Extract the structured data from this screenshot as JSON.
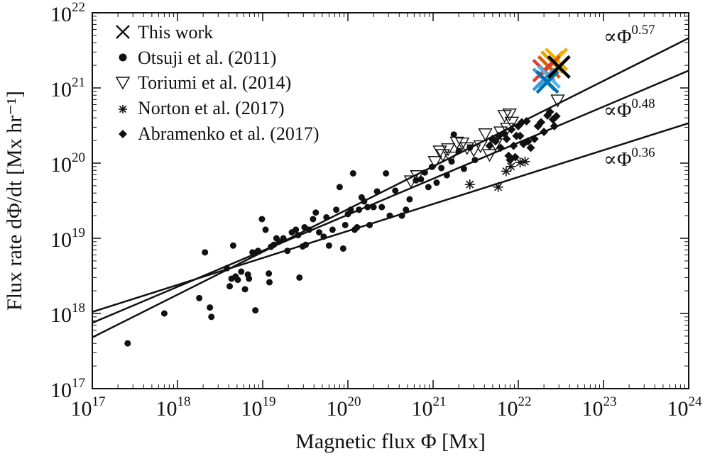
{
  "chart_data": {
    "type": "scatter",
    "x_scale": "log",
    "y_scale": "log",
    "xlim": [
      1e+17,
      1e+24
    ],
    "ylim": [
      1e+17,
      1e+22
    ],
    "xlabel": "Magnetic flux Φ [Mx]",
    "ylabel": "Flux rate dΦ/dt [Mx hr⁻¹]",
    "grid": false,
    "legend_position": "top-left",
    "x_ticks": [
      {
        "base": "10",
        "exp": "17",
        "value": 1e+17
      },
      {
        "base": "10",
        "exp": "18",
        "value": 1e+18
      },
      {
        "base": "10",
        "exp": "19",
        "value": 1e+19
      },
      {
        "base": "10",
        "exp": "20",
        "value": 1e+20
      },
      {
        "base": "10",
        "exp": "21",
        "value": 1e+21
      },
      {
        "base": "10",
        "exp": "22",
        "value": 1e+22
      },
      {
        "base": "10",
        "exp": "23",
        "value": 1e+23
      },
      {
        "base": "10",
        "exp": "24",
        "value": 1e+24
      }
    ],
    "y_ticks": [
      {
        "base": "10",
        "exp": "17",
        "value": 1e+17
      },
      {
        "base": "10",
        "exp": "18",
        "value": 1e+18
      },
      {
        "base": "10",
        "exp": "19",
        "value": 1e+19
      },
      {
        "base": "10",
        "exp": "20",
        "value": 1e+20
      },
      {
        "base": "10",
        "exp": "21",
        "value": 1e+21
      },
      {
        "base": "10",
        "exp": "22",
        "value": 1e+22
      }
    ],
    "series": [
      {
        "name": "This work",
        "marker": "x",
        "points": [
          {
            "x": 2.5e+22,
            "y": 2.2e+21,
            "color": "#e69f00"
          },
          {
            "x": 2.8e+22,
            "y": 2.4e+21,
            "color": "#f0b000"
          },
          {
            "x": 2.3e+22,
            "y": 1.9e+21,
            "color": "#d55e00"
          },
          {
            "x": 2e+22,
            "y": 1.7e+21,
            "color": "#e63b2e"
          },
          {
            "x": 2.3e+22,
            "y": 1.4e+21,
            "color": "#56b4e9"
          },
          {
            "x": 2e+22,
            "y": 1.3e+21,
            "color": "#3a9ad9"
          },
          {
            "x": 2.2e+22,
            "y": 1.2e+21,
            "color": "#0072b2"
          },
          {
            "x": 3e+22,
            "y": 1.9e+21,
            "color": "#000000"
          }
        ]
      },
      {
        "name": "Otsuji et al. (2011)",
        "marker": "circle",
        "points": [
          {
            "x": 2.6e+17,
            "y": 4e+17
          },
          {
            "x": 7e+17,
            "y": 1e+18
          },
          {
            "x": 1.8e+18,
            "y": 1.6e+18
          },
          {
            "x": 2.1e+18,
            "y": 6.5e+18
          },
          {
            "x": 2.4e+18,
            "y": 1.2e+18
          },
          {
            "x": 2.5e+18,
            "y": 9e+17
          },
          {
            "x": 3.8e+18,
            "y": 4e+18
          },
          {
            "x": 4.1e+18,
            "y": 2.3e+18
          },
          {
            "x": 4.3e+18,
            "y": 2.9e+18
          },
          {
            "x": 4.5e+18,
            "y": 8e+18
          },
          {
            "x": 4.8e+18,
            "y": 3.1e+18
          },
          {
            "x": 5.1e+18,
            "y": 2.8e+18
          },
          {
            "x": 5.6e+18,
            "y": 3.6e+18
          },
          {
            "x": 6.2e+18,
            "y": 2.1e+18
          },
          {
            "x": 6.7e+18,
            "y": 3.3e+18
          },
          {
            "x": 6.9e+18,
            "y": 2.9e+18
          },
          {
            "x": 7.6e+18,
            "y": 6.5e+18
          },
          {
            "x": 8.2e+18,
            "y": 1.1e+18
          },
          {
            "x": 8.8e+18,
            "y": 6.8e+18
          },
          {
            "x": 9.8e+18,
            "y": 1.8e+19
          },
          {
            "x": 1.08e+19,
            "y": 1.3e+19
          },
          {
            "x": 1.18e+19,
            "y": 3.4e+18
          },
          {
            "x": 1.2e+19,
            "y": 2.6e+18
          },
          {
            "x": 1.25e+19,
            "y": 7.7e+18
          },
          {
            "x": 1.35e+19,
            "y": 8.2e+18
          },
          {
            "x": 1.45e+19,
            "y": 1e+19
          },
          {
            "x": 1.55e+19,
            "y": 9e+18
          },
          {
            "x": 1.75e+19,
            "y": 1e+19
          },
          {
            "x": 1.95e+19,
            "y": 6.8e+18
          },
          {
            "x": 2.2e+19,
            "y": 1.2e+19
          },
          {
            "x": 2.45e+19,
            "y": 1.3e+19
          },
          {
            "x": 2.6e+19,
            "y": 1.1e+19
          },
          {
            "x": 2.7e+19,
            "y": 3e+18
          },
          {
            "x": 2.95e+19,
            "y": 7.8e+18
          },
          {
            "x": 3.1e+19,
            "y": 1.4e+19
          },
          {
            "x": 3.2e+19,
            "y": 8.2e+18
          },
          {
            "x": 3.5e+19,
            "y": 1.3e+19
          },
          {
            "x": 3.9e+19,
            "y": 1.8e+19
          },
          {
            "x": 4.2e+19,
            "y": 2.2e+19
          },
          {
            "x": 4.6e+19,
            "y": 1.2e+19
          },
          {
            "x": 5.2e+19,
            "y": 1.05e+19
          },
          {
            "x": 5.6e+19,
            "y": 1.9e+19
          },
          {
            "x": 6e+19,
            "y": 8e+18
          },
          {
            "x": 6.6e+19,
            "y": 1.3e+19
          },
          {
            "x": 7.3e+19,
            "y": 2.4e+19
          },
          {
            "x": 8e+19,
            "y": 4.8e+19
          },
          {
            "x": 8.8e+19,
            "y": 7.3e+18
          },
          {
            "x": 9.3e+19,
            "y": 1.5e+19
          },
          {
            "x": 1e+20,
            "y": 2.1e+19
          },
          {
            "x": 1.08e+20,
            "y": 2.4e+19
          },
          {
            "x": 1.15e+20,
            "y": 7.3e+19
          },
          {
            "x": 1.2e+20,
            "y": 1.3e+19
          },
          {
            "x": 1.28e+20,
            "y": 1.4e+19
          },
          {
            "x": 1.35e+20,
            "y": 2.4e+19
          },
          {
            "x": 1.45e+20,
            "y": 3.5e+19
          },
          {
            "x": 1.55e+20,
            "y": 3.1e+19
          },
          {
            "x": 1.7e+20,
            "y": 2.6e+19
          },
          {
            "x": 1.8e+20,
            "y": 1.5e+19
          },
          {
            "x": 2e+20,
            "y": 2.6e+19
          },
          {
            "x": 2.2e+20,
            "y": 4.2e+19
          },
          {
            "x": 2.5e+20,
            "y": 2.6e+19
          },
          {
            "x": 2.8e+20,
            "y": 7.3e+19
          },
          {
            "x": 3.1e+20,
            "y": 2e+19
          },
          {
            "x": 3.6e+20,
            "y": 4.3e+19
          },
          {
            "x": 4.3e+20,
            "y": 2e+19
          },
          {
            "x": 4.8e+20,
            "y": 2.4e+19
          },
          {
            "x": 5.3e+20,
            "y": 3.3e+19
          },
          {
            "x": 6.3e+20,
            "y": 5.9e+19
          },
          {
            "x": 7.2e+20,
            "y": 6.1e+19
          },
          {
            "x": 8e+20,
            "y": 7.5e+19
          },
          {
            "x": 8.8e+20,
            "y": 4.8e+19
          },
          {
            "x": 9.7e+20,
            "y": 8.9e+19
          },
          {
            "x": 1.1e+21,
            "y": 5.5e+19
          },
          {
            "x": 1.25e+21,
            "y": 8.6e+19
          },
          {
            "x": 1.45e+21,
            "y": 6.9e+19
          },
          {
            "x": 1.65e+21,
            "y": 1.05e+20
          },
          {
            "x": 1.75e+21,
            "y": 2.4e+20
          },
          {
            "x": 2e+21,
            "y": 1.45e+20
          },
          {
            "x": 2.3e+21,
            "y": 8.4e+19
          },
          {
            "x": 2.7e+21,
            "y": 1.6e+20
          },
          {
            "x": 3.1e+21,
            "y": 1.1e+20
          }
        ]
      },
      {
        "name": "Toriumi et al. (2014)",
        "marker": "triangle-down-open",
        "points": [
          {
            "x": 5.5e+20,
            "y": 5.8e+19
          },
          {
            "x": 6.5e+20,
            "y": 6.8e+19
          },
          {
            "x": 1.05e+21,
            "y": 1.05e+20
          },
          {
            "x": 1.2e+21,
            "y": 1.45e+20
          },
          {
            "x": 1.3e+21,
            "y": 1.3e+20
          },
          {
            "x": 1.5e+21,
            "y": 1.55e+20
          },
          {
            "x": 1.6e+21,
            "y": 1.2e+20
          },
          {
            "x": 1.9e+21,
            "y": 1.9e+20
          },
          {
            "x": 2.2e+21,
            "y": 1.85e+20
          },
          {
            "x": 2.5e+21,
            "y": 1.6e+20
          },
          {
            "x": 3e+21,
            "y": 1.5e+20
          },
          {
            "x": 3.6e+21,
            "y": 1.7e+20
          },
          {
            "x": 4.1e+21,
            "y": 2.45e+20
          },
          {
            "x": 4.6e+21,
            "y": 1.3e+20
          },
          {
            "x": 5.4e+21,
            "y": 1.8e+20
          },
          {
            "x": 6.2e+21,
            "y": 2.6e+20
          },
          {
            "x": 6.9e+21,
            "y": 4.3e+20
          },
          {
            "x": 7.4e+21,
            "y": 2.9e+20
          },
          {
            "x": 7.9e+21,
            "y": 4.5e+20
          },
          {
            "x": 8.4e+21,
            "y": 3.5e+20
          },
          {
            "x": 2.9e+22,
            "y": 6.9e+20
          }
        ]
      },
      {
        "name": "Norton et al. (2017)",
        "marker": "asterisk",
        "points": [
          {
            "x": 2.7e+21,
            "y": 5.2e+19
          },
          {
            "x": 5.8e+21,
            "y": 4.8e+19
          },
          {
            "x": 7.2e+21,
            "y": 7.8e+19
          },
          {
            "x": 8.2e+21,
            "y": 9e+19
          },
          {
            "x": 1.05e+22,
            "y": 1.02e+20
          },
          {
            "x": 1.2e+22,
            "y": 1.05e+20
          }
        ]
      },
      {
        "name": "Abramenko et al. (2017)",
        "marker": "diamond",
        "points": [
          {
            "x": 4.6e+21,
            "y": 1.7e+20
          },
          {
            "x": 5e+21,
            "y": 2.1e+20
          },
          {
            "x": 5.4e+21,
            "y": 1.95e+20
          },
          {
            "x": 5.9e+21,
            "y": 2.3e+20
          },
          {
            "x": 6.2e+21,
            "y": 1.6e+20
          },
          {
            "x": 6.8e+21,
            "y": 2.5e+20
          },
          {
            "x": 7.3e+21,
            "y": 2.1e+20
          },
          {
            "x": 7.7e+21,
            "y": 1.25e+20
          },
          {
            "x": 8e+21,
            "y": 1.1e+20
          },
          {
            "x": 8.3e+21,
            "y": 2.8e+20
          },
          {
            "x": 8.8e+21,
            "y": 1.7e+20
          },
          {
            "x": 9.2e+21,
            "y": 1.2e+20
          },
          {
            "x": 9.5e+21,
            "y": 2.3e+20
          },
          {
            "x": 1e+22,
            "y": 3.1e+20
          },
          {
            "x": 1.05e+22,
            "y": 2.3e+20
          },
          {
            "x": 1.1e+22,
            "y": 3.5e+20
          },
          {
            "x": 1.15e+22,
            "y": 1.8e+20
          },
          {
            "x": 1.25e+22,
            "y": 3.6e+20
          },
          {
            "x": 1.3e+22,
            "y": 1.95e+20
          },
          {
            "x": 1.4e+22,
            "y": 1.6e+20
          },
          {
            "x": 1.55e+22,
            "y": 2.1e+20
          },
          {
            "x": 1.7e+22,
            "y": 3.1e+20
          },
          {
            "x": 1.85e+22,
            "y": 3.5e+20
          },
          {
            "x": 2e+22,
            "y": 2.6e+20
          },
          {
            "x": 2.2e+22,
            "y": 4.3e+20
          },
          {
            "x": 2.35e+22,
            "y": 4.8e+20
          },
          {
            "x": 2.55e+22,
            "y": 3.8e+20
          },
          {
            "x": 2.65e+22,
            "y": 3.1e+20
          },
          {
            "x": 2.8e+22,
            "y": 4.2e+20
          }
        ]
      }
    ],
    "fit_lines": [
      {
        "label_base": "∝Φ",
        "label_exp": "0.57",
        "exponent": 0.57,
        "x_range": [
          1e+17,
          1e+24
        ],
        "y_at_x_min": 4.8e+17,
        "y_at_x_max": 4.6e+21
      },
      {
        "label_base": "∝Φ",
        "label_exp": "0.48",
        "exponent": 0.48,
        "x_range": [
          1e+17,
          1e+24
        ],
        "y_at_x_min": 7.5e+17,
        "y_at_x_max": 1.7e+21
      },
      {
        "label_base": "∝Φ",
        "label_exp": "0.36",
        "exponent": 0.36,
        "x_range": [
          1e+17,
          1e+24
        ],
        "y_at_x_min": 1.05e+18,
        "y_at_x_max": 3.4e+20
      }
    ]
  }
}
